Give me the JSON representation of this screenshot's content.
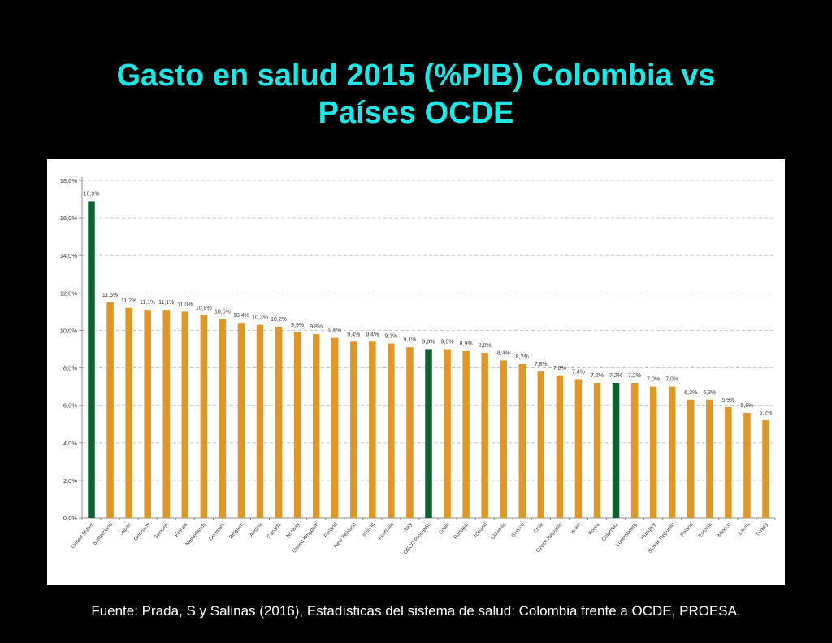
{
  "slide": {
    "title_line1": "Gasto en salud 2015 (%PIB) Colombia vs",
    "title_line2": "Países OCDE",
    "source": "Fuente: Prada, S y Salinas (2016), Estadísticas del sistema de salud: Colombia frente a OCDE, PROESA."
  },
  "chart_data": {
    "type": "bar",
    "title": "",
    "xlabel": "",
    "ylabel": "",
    "ylim": [
      0,
      18
    ],
    "yticks": [
      "0,0%",
      "2,0%",
      "4,0%",
      "6,0%",
      "8,0%",
      "10,0%",
      "12,0%",
      "14,0%",
      "16,0%",
      "18,0%"
    ],
    "grid": true,
    "colors": {
      "default": "#e0972a",
      "highlight": "#0d6130"
    },
    "categories": [
      "United States",
      "Switzerland",
      "Japan",
      "Germany",
      "Sweden",
      "France",
      "Netherlands",
      "Denmark",
      "Belgium",
      "Austria",
      "Canada",
      "Norway",
      "United Kingdom",
      "Finland",
      "New Zealand",
      "Ireland",
      "Australia",
      "Italy",
      "OECD Promedio",
      "Spain",
      "Portugal",
      "Iceland",
      "Slovenia",
      "Greece",
      "Chile",
      "Czech Republic",
      "Israel",
      "Korea",
      "Colombia",
      "Luxembourg",
      "Hungary",
      "Slovak Republic",
      "Poland",
      "Estonia",
      "Mexico",
      "Latvia",
      "Turkey"
    ],
    "values": [
      16.9,
      11.5,
      11.2,
      11.1,
      11.1,
      11.0,
      10.8,
      10.6,
      10.4,
      10.3,
      10.2,
      9.9,
      9.8,
      9.6,
      9.4,
      9.4,
      9.3,
      9.1,
      9.0,
      9.0,
      8.9,
      8.8,
      8.4,
      8.2,
      7.8,
      7.6,
      7.4,
      7.2,
      7.2,
      7.2,
      7.0,
      7.0,
      6.3,
      6.3,
      5.9,
      5.6,
      5.2
    ],
    "data_labels": [
      "16,9%",
      "11,5%",
      "11,2%",
      "11,1%",
      "11,1%",
      "11,0%",
      "10,8%",
      "10,6%",
      "10,4%",
      "10,3%",
      "10,2%",
      "9,9%",
      "9,8%",
      "9,6%",
      "9,4%",
      "9,4%",
      "9,3%",
      "9,1%",
      "9,0%",
      "9,0%",
      "8,9%",
      "8,8%",
      "8,4%",
      "8,2%",
      "7,8%",
      "7,6%",
      "7,4%",
      "7,2%",
      "7,2%",
      "7,2%",
      "7,0%",
      "7,0%",
      "6,3%",
      "6,3%",
      "5,9%",
      "5,6%",
      "5,2%"
    ],
    "highlighted": [
      "United States",
      "OECD Promedio",
      "Colombia"
    ]
  }
}
